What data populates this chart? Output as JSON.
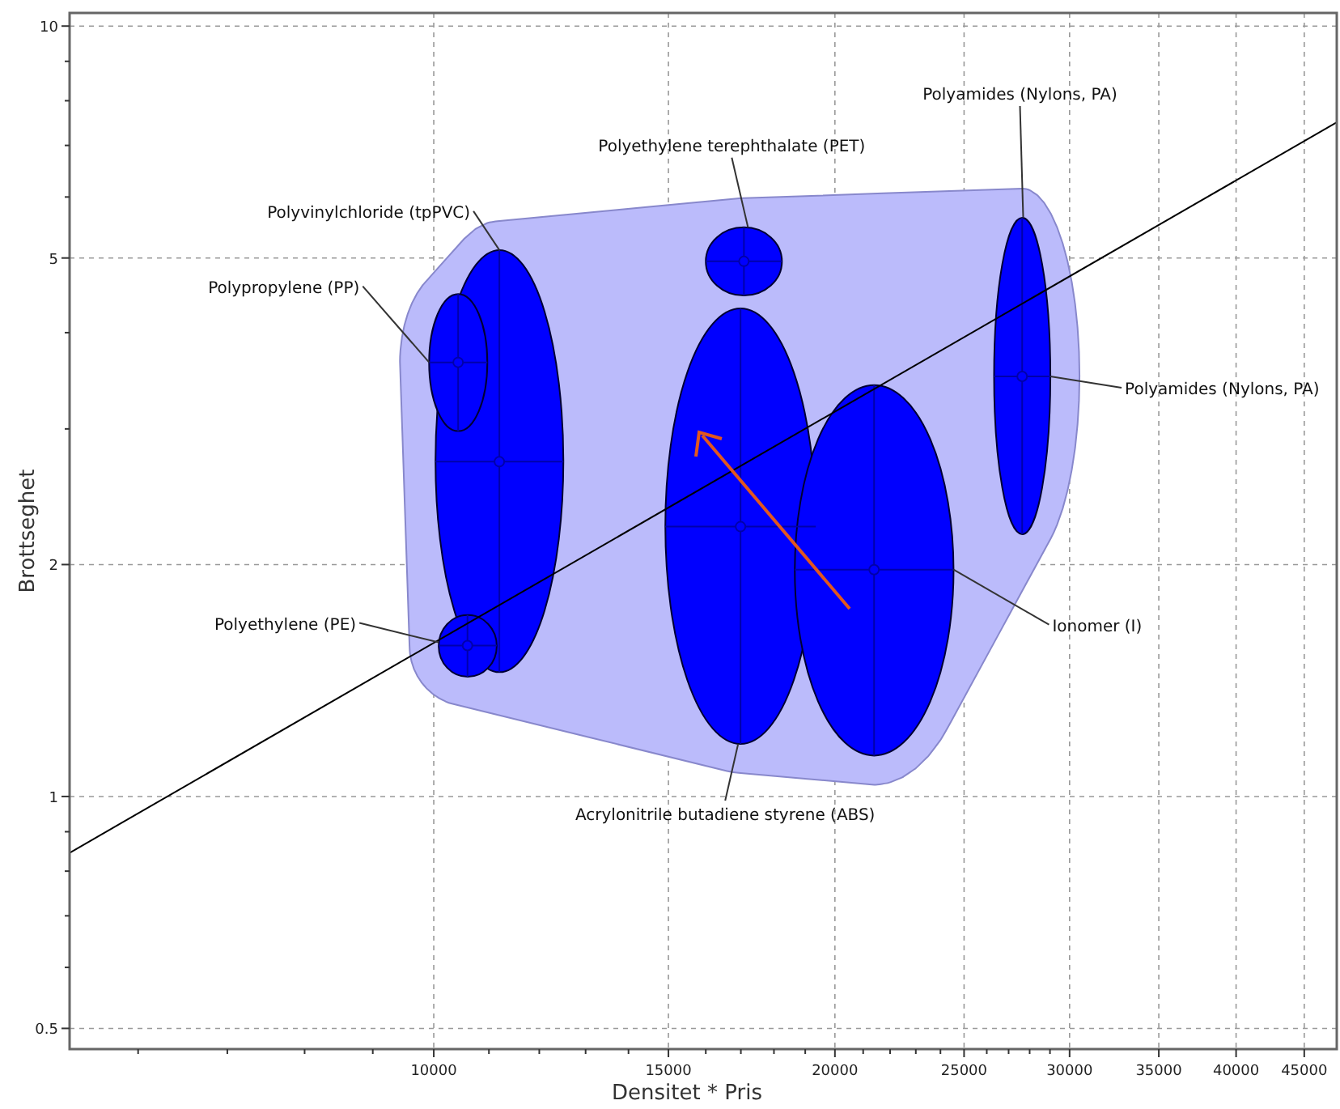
{
  "chart_data": {
    "type": "scatter",
    "xlabel": "Densitet * Pris",
    "ylabel": "Brottseghet",
    "log": "xy",
    "grid": true,
    "marker": "circle",
    "xlim": [
      5330,
      47600
    ],
    "ylim": [
      0.47,
      10.4
    ],
    "xticks": [
      {
        "value": 6000,
        "label": null
      },
      {
        "value": 7000,
        "label": null
      },
      {
        "value": 8000,
        "label": null
      },
      {
        "value": 9000,
        "label": null
      },
      10000,
      {
        "value": 11000,
        "label": null
      },
      {
        "value": 12000,
        "label": null
      },
      {
        "value": 13000,
        "label": null
      },
      {
        "value": 14000,
        "label": null
      },
      15000,
      {
        "value": 16000,
        "label": null
      },
      {
        "value": 17000,
        "label": null
      },
      {
        "value": 18000,
        "label": null
      },
      {
        "value": 19000,
        "label": null
      },
      20000,
      {
        "value": 21000,
        "label": null
      },
      {
        "value": 22000,
        "label": null
      },
      {
        "value": 23000,
        "label": null
      },
      {
        "value": 24000,
        "label": null
      },
      25000,
      {
        "value": 26000,
        "label": null
      },
      {
        "value": 27000,
        "label": null
      },
      {
        "value": 28000,
        "label": null
      },
      {
        "value": 29000,
        "label": null
      },
      30000,
      35000,
      40000,
      45000
    ],
    "yticks": [
      0.5,
      {
        "value": 0.6,
        "label": null
      },
      {
        "value": 0.7,
        "label": null
      },
      {
        "value": 0.8,
        "label": null
      },
      {
        "value": 0.9,
        "label": null
      },
      1,
      2,
      {
        "value": 3,
        "label": null
      },
      {
        "value": 4,
        "label": null
      },
      5,
      {
        "value": 6,
        "label": null
      },
      {
        "value": 7,
        "label": null
      },
      {
        "value": 8,
        "label": null
      },
      {
        "value": 9,
        "label": null
      },
      10
    ],
    "series": [
      {
        "color": "#0000ff",
        "x": [
          11200,
          10430,
          10600,
          17090,
          16990,
          21400,
          27640
        ],
        "values": [
          2.72,
          3.66,
          1.57,
          4.95,
          2.24,
          1.97,
          3.51
        ],
        "errors": [
          [
            1.45,
            5.12
          ],
          [
            2.98,
            4.49
          ],
          [
            1.43,
            1.72
          ],
          [
            4.47,
            5.48
          ],
          [
            1.17,
            4.3
          ],
          [
            1.13,
            3.42
          ],
          [
            2.19,
            5.64
          ]
        ],
        "xerrors": [
          [
            10030,
            12510
          ],
          [
            9920,
            10970
          ],
          [
            10085,
            11150
          ],
          [
            16000,
            18250
          ],
          [
            14920,
            19350
          ],
          [
            18660,
            24550
          ],
          [
            26330,
            29020
          ]
        ]
      },
      {
        "type": "line",
        "marker": "none",
        "color": "#000000",
        "x": [
          5330,
          47600
        ],
        "values": [
          0.845,
          7.5
        ]
      }
    ],
    "annotations": [
      {
        "text": "Polypropylene (PP)",
        "x": 9920,
        "y": 3.66
      },
      {
        "text": "Polyvinylchloride (tpPVC)",
        "x": 11200,
        "y": 5.12
      },
      {
        "text": "Polyethylene (PE)",
        "x": 10085,
        "y": 1.585
      },
      {
        "text": "Polyethylene terephthalate (PET)",
        "x": 17210,
        "y": 5.48
      },
      {
        "text": "Polyamides (Nylons, PA)",
        "x": 27690,
        "y": 5.64
      },
      {
        "text": "Polyamides (Nylons, PA)",
        "x": 29020,
        "y": 3.51
      },
      {
        "text": "Ionomer (I)",
        "x": 24550,
        "y": 1.97
      },
      {
        "text": "Acrylonitrile butadiene styrene (ABS)",
        "x": 16920,
        "y": 1.17
      }
    ]
  }
}
